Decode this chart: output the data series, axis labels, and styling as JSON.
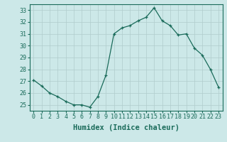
{
  "x": [
    0,
    1,
    2,
    3,
    4,
    5,
    6,
    7,
    8,
    9,
    10,
    11,
    12,
    13,
    14,
    15,
    16,
    17,
    18,
    19,
    20,
    21,
    22,
    23
  ],
  "y": [
    27.1,
    26.6,
    26.0,
    25.7,
    25.3,
    25.0,
    25.0,
    24.8,
    25.7,
    27.5,
    31.0,
    31.5,
    31.7,
    32.1,
    32.4,
    33.2,
    32.1,
    31.7,
    30.9,
    31.0,
    29.8,
    29.2,
    28.0,
    26.5
  ],
  "xlabel": "Humidex (Indice chaleur)",
  "ylabel": "",
  "xlim": [
    -0.5,
    23.5
  ],
  "ylim": [
    24.5,
    33.5
  ],
  "yticks": [
    25,
    26,
    27,
    28,
    29,
    30,
    31,
    32,
    33
  ],
  "xticks": [
    0,
    1,
    2,
    3,
    4,
    5,
    6,
    7,
    8,
    9,
    10,
    11,
    12,
    13,
    14,
    15,
    16,
    17,
    18,
    19,
    20,
    21,
    22,
    23
  ],
  "line_color": "#1a6b5a",
  "marker": "+",
  "bg_color": "#cce8e8",
  "grid_color": "#b0cccc",
  "font_color": "#1a6b5a",
  "tick_fontsize": 6.0,
  "xlabel_fontsize": 7.5
}
